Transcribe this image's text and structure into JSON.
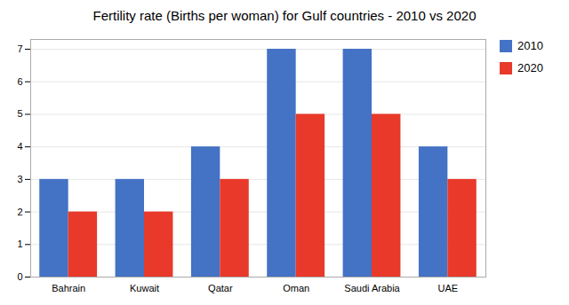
{
  "chart_data": {
    "type": "bar",
    "title": "Fertility rate (Births per woman) for Gulf countries - 2010 vs 2020",
    "categories": [
      "Bahrain",
      "Kuwait",
      "Qatar",
      "Oman",
      "Saudi Arabia",
      "UAE"
    ],
    "series": [
      {
        "name": "2010",
        "color": "#4472C4",
        "values": [
          3,
          3,
          4,
          7,
          7,
          4
        ]
      },
      {
        "name": "2020",
        "color": "#E8392A",
        "values": [
          2,
          2,
          3,
          5,
          5,
          3
        ]
      }
    ],
    "ylim": [
      0,
      7.3
    ],
    "yticks": [
      0,
      1,
      2,
      3,
      4,
      5,
      6,
      7
    ],
    "grid": true,
    "legend": "upper right"
  }
}
